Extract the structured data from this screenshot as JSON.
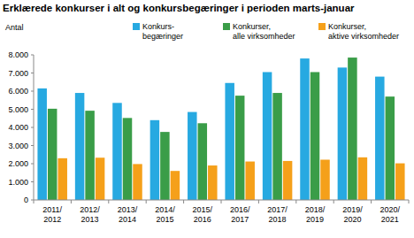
{
  "chart_data": {
    "type": "bar",
    "title": "Erklærede konkurser i alt og konkursbegæringer i perioden marts-januar",
    "y_label": "Antal",
    "categories": [
      "2011/2012",
      "2012/2013",
      "2013/2014",
      "2014/2015",
      "2015/2016",
      "2016/2017",
      "2017/2018",
      "2018/2019",
      "2019/2020",
      "2020/2021"
    ],
    "series": [
      {
        "name": "Konkurs-begæringer",
        "color": "#27a9e1",
        "values": [
          6150,
          5900,
          5350,
          4400,
          4850,
          6450,
          7050,
          7800,
          7300,
          6800
        ]
      },
      {
        "name": "Konkurser, alle virksomheder",
        "color": "#3a9d48",
        "values": [
          5030,
          4920,
          4520,
          3750,
          4230,
          5750,
          5900,
          7050,
          7850,
          5700
        ]
      },
      {
        "name": "Konkurser, aktive virksomheder",
        "color": "#f5a01a",
        "values": [
          2300,
          2330,
          1980,
          1600,
          1900,
          2120,
          2150,
          2220,
          2350,
          2020
        ]
      }
    ],
    "ylim": [
      0,
      8000
    ],
    "yticks": [
      0,
      {
        "value": 1000,
        "label": "1.000"
      },
      {
        "value": 2000,
        "label": "2.000"
      },
      {
        "value": 3000,
        "label": "3.000"
      },
      {
        "value": 4000,
        "label": "4.000"
      },
      {
        "value": 5000,
        "label": "5.000"
      },
      {
        "value": 6000,
        "label": "6.000"
      },
      {
        "value": 7000,
        "label": "7.000"
      },
      {
        "value": 8000,
        "label": "8.000"
      }
    ],
    "grid": false,
    "legend": "top"
  }
}
